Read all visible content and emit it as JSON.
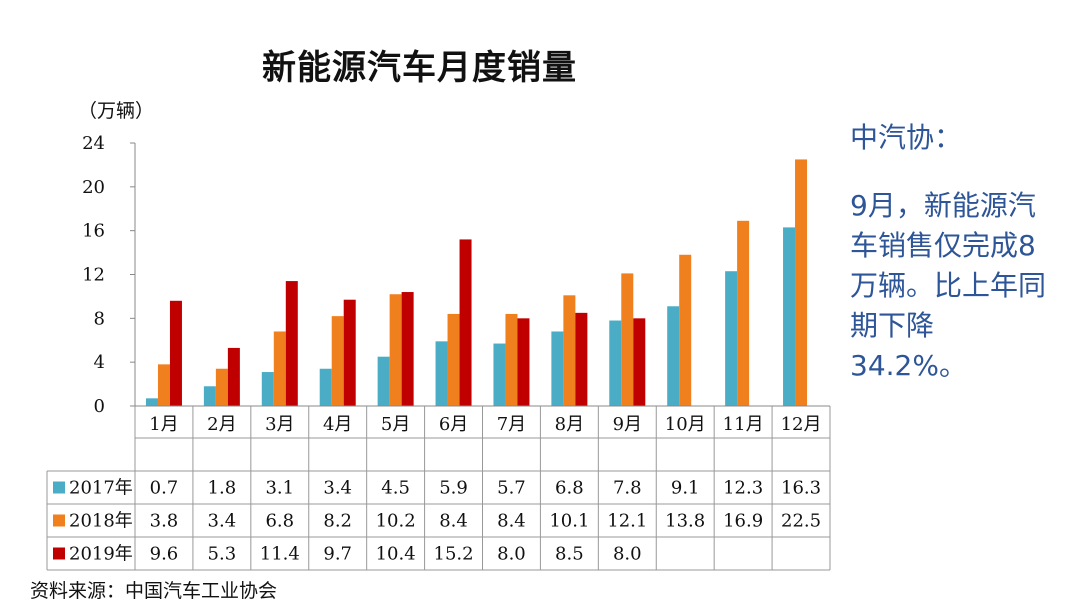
{
  "unit_label": "（万辆）",
  "source": "资料来源：中国汽车工业协会",
  "note": {
    "heading": "中汽协：",
    "body": "9月，新能源汽车销售仅完成8万辆。比上年同期下降34.2%。"
  },
  "colors": {
    "2017": "#4bacc6",
    "2018": "#f07f1d",
    "2019": "#c00000"
  },
  "chart_data": {
    "type": "bar",
    "title": "新能源汽车月度销量",
    "ylabel": "（万辆）",
    "ylim": [
      0,
      24
    ],
    "yticks": [
      0,
      4,
      8,
      12,
      16,
      20,
      24
    ],
    "categories": [
      "1月",
      "2月",
      "3月",
      "4月",
      "5月",
      "6月",
      "7月",
      "8月",
      "9月",
      "10月",
      "11月",
      "12月"
    ],
    "series": [
      {
        "name": "2017年",
        "values": [
          0.7,
          1.8,
          3.1,
          3.4,
          4.5,
          5.9,
          5.7,
          6.8,
          7.8,
          9.1,
          12.3,
          16.3
        ]
      },
      {
        "name": "2018年",
        "values": [
          3.8,
          3.4,
          6.8,
          8.2,
          10.2,
          8.4,
          8.4,
          10.1,
          12.1,
          13.8,
          16.9,
          22.5
        ]
      },
      {
        "name": "2019年",
        "values": [
          9.6,
          5.3,
          11.4,
          9.7,
          10.4,
          15.2,
          8.0,
          8.5,
          8.0,
          null,
          null,
          null
        ]
      }
    ],
    "table_text": [
      [
        "0.7",
        "1.8",
        "3.1",
        "3.4",
        "4.5",
        "5.9",
        "5.7",
        "6.8",
        "7.8",
        "9.1",
        "12.3",
        "16.3"
      ],
      [
        "3.8",
        "3.4",
        "6.8",
        "8.2",
        "10.2",
        "8.4",
        "8.4",
        "10.1",
        "12.1",
        "13.8",
        "16.9",
        "22.5"
      ],
      [
        "9.6",
        "5.3",
        "11.4",
        "9.7",
        "10.4",
        "15.2",
        "8.0",
        "8.5",
        "8.0",
        "",
        "",
        ""
      ]
    ],
    "grid": false,
    "legend": "bottom-table"
  }
}
